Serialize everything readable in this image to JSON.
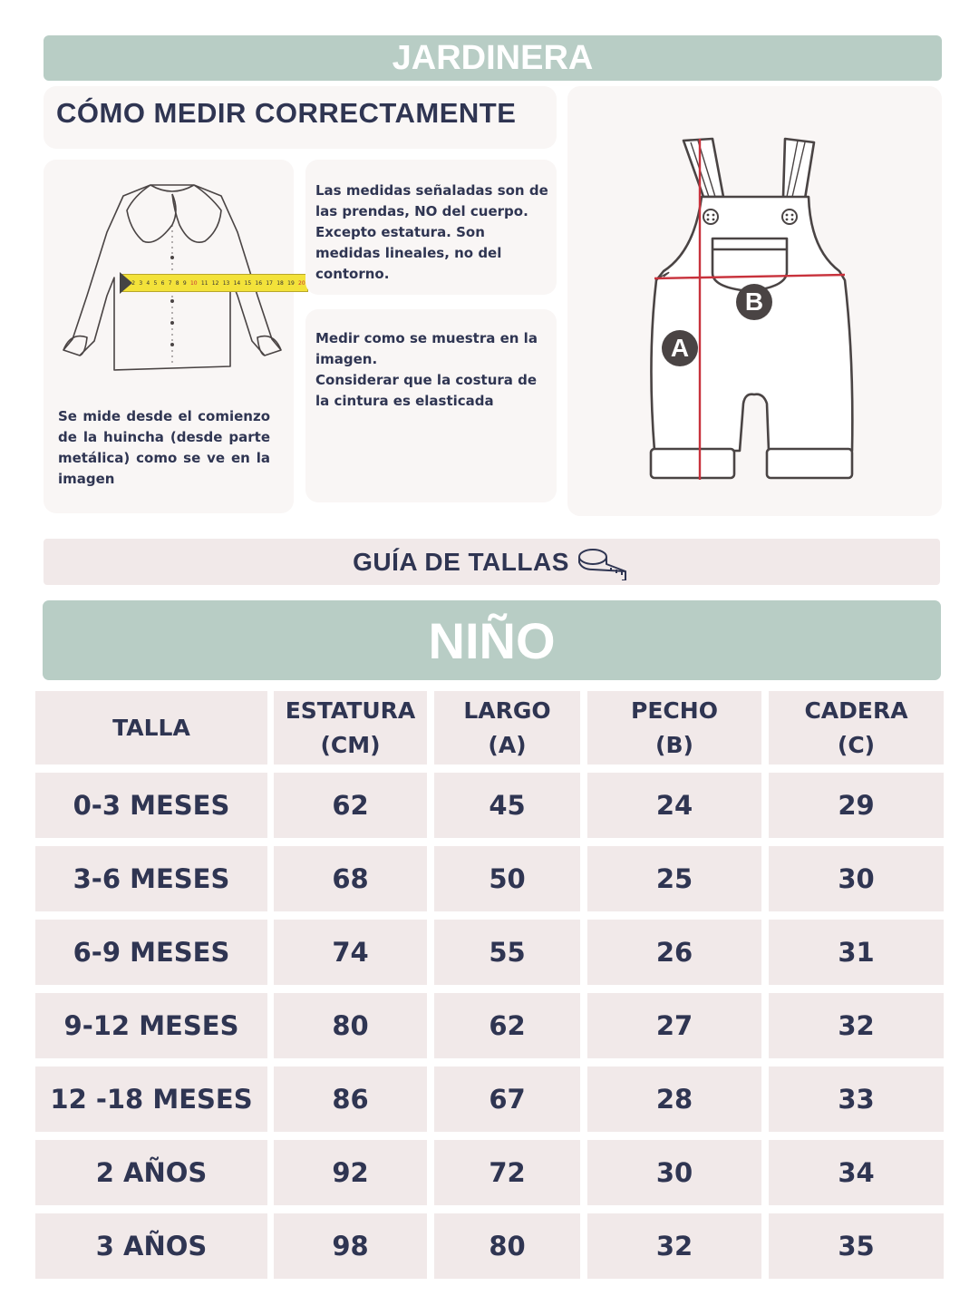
{
  "title": "JARDINERA",
  "how_to": {
    "heading": "CÓMO MEDIR CORRECTAMENTE",
    "note_measures": "Las medidas señaladas son de las prendas, NO del cuerpo. Excepto estatura. Son medidas lineales, no del contorno.",
    "note_image": "Medir como se muestra en la imagen.",
    "note_elastic": "Considerar que la costura de la cintura es elasticada",
    "tape_note": "Se mide desde el comienzo de la huincha (desde parte metálica) como se ve en la imagen",
    "tape_numbers": [
      "1",
      "2",
      "3",
      "4",
      "5",
      "6",
      "7",
      "8",
      "9",
      "10",
      "11",
      "12",
      "13",
      "14",
      "15",
      "16",
      "17",
      "18",
      "19",
      "20"
    ],
    "label_a": "A",
    "label_b": "B"
  },
  "guide_label": "GUÍA DE TALLAS",
  "section_title": "NIÑO",
  "table": {
    "headers": [
      {
        "line1": "TALLA",
        "line2": ""
      },
      {
        "line1": "ESTATURA",
        "line2": "(CM)"
      },
      {
        "line1": "LARGO",
        "line2": "(A)"
      },
      {
        "line1": "PECHO",
        "line2": "(B)"
      },
      {
        "line1": "CADERA",
        "line2": "(C)"
      }
    ],
    "rows": [
      [
        "0-3 MESES",
        "62",
        "45",
        "24",
        "29"
      ],
      [
        "3-6 MESES",
        "68",
        "50",
        "25",
        "30"
      ],
      [
        "6-9 MESES",
        "74",
        "55",
        "26",
        "31"
      ],
      [
        "9-12 MESES",
        "80",
        "62",
        "27",
        "32"
      ],
      [
        "12 -18 MESES",
        "86",
        "67",
        "28",
        "33"
      ],
      [
        "2 AÑOS",
        "92",
        "72",
        "30",
        "34"
      ],
      [
        "3 AÑOS",
        "98",
        "80",
        "32",
        "35"
      ]
    ]
  },
  "colors": {
    "banner": "#b8cdc5",
    "navy": "#2f3552",
    "cell": "#f1e9e9",
    "card": "#f9f6f5",
    "measure_red": "#c8323c",
    "tape_yellow": "#f3e23a"
  }
}
